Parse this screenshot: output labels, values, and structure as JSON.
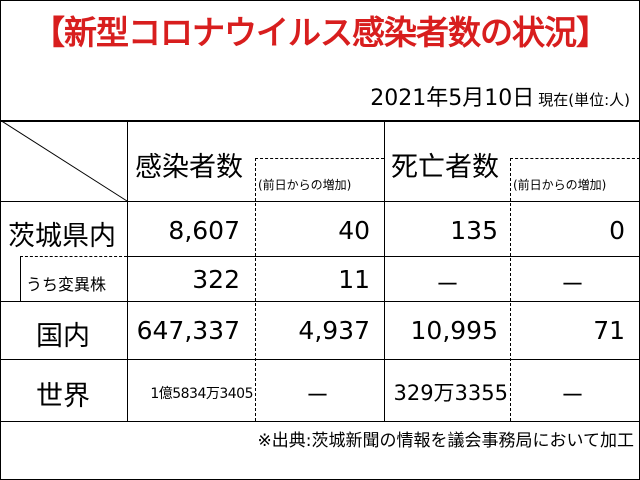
{
  "title": "【新型コロナウイルス感染者数の状況】",
  "date": "2021年5月10日",
  "date_unit": "現在(単位:人)",
  "columns": {
    "cases": "感染者数",
    "cases_increase": "(前日からの増加)",
    "deaths": "死亡者数",
    "deaths_increase": "(前日からの増加)"
  },
  "rows": [
    {
      "label": "茨城県内",
      "cases": "8,607",
      "cases_increase": "40",
      "deaths": "135",
      "deaths_increase": "0"
    },
    {
      "label": "うち変異株",
      "cases": "322",
      "cases_increase": "11",
      "deaths": "－",
      "deaths_increase": "－"
    },
    {
      "label": "国内",
      "cases": "647,337",
      "cases_increase": "4,937",
      "deaths": "10,995",
      "deaths_increase": "71"
    },
    {
      "label": "世界",
      "cases": "1億5834万3405",
      "cases_increase": "－",
      "deaths": "329万3355",
      "deaths_increase": "－"
    }
  ],
  "footnote": "※出典:茨城新聞の情報を議会事務局において加工"
}
